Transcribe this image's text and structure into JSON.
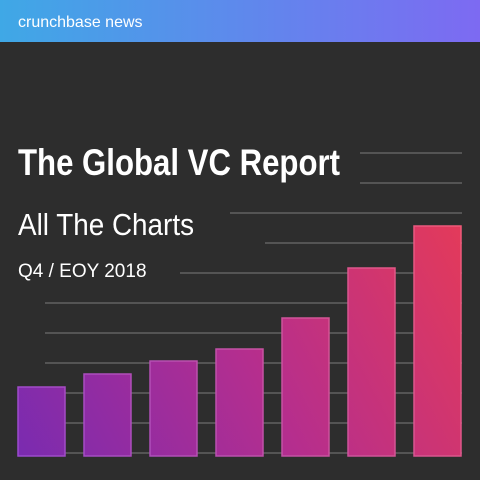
{
  "header": {
    "brand": "crunchbase news"
  },
  "cover": {
    "title": "The Global VC Report",
    "subtitle": "All The Charts",
    "period": "Q4 / EOY 2018"
  }
}
